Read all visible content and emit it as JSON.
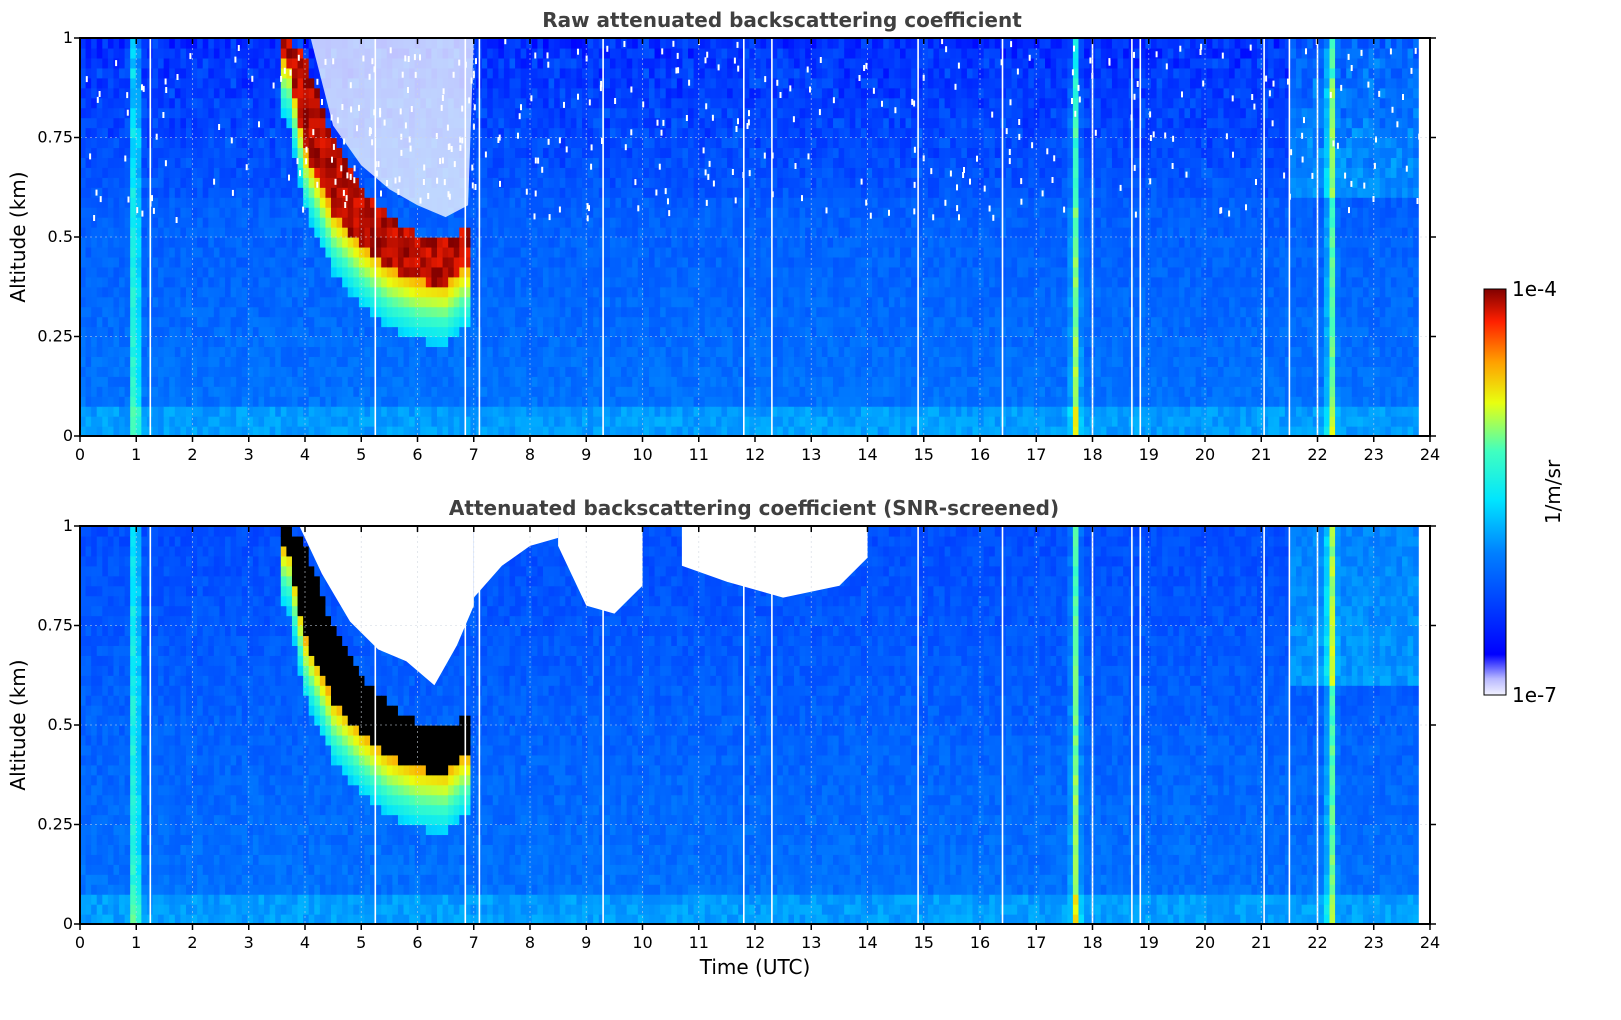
{
  "chart_data": [
    {
      "type": "heatmap",
      "title": "Raw attenuated backscattering coefficient",
      "xlabel": "",
      "ylabel": "Altitude (km)",
      "xlim": [
        0,
        24
      ],
      "ylim": [
        0,
        1
      ],
      "x_ticks": [
        "0",
        "1",
        "2",
        "3",
        "4",
        "5",
        "6",
        "7",
        "8",
        "9",
        "10",
        "11",
        "12",
        "13",
        "14",
        "15",
        "16",
        "17",
        "18",
        "19",
        "20",
        "21",
        "22",
        "23",
        "24"
      ],
      "y_ticks": [
        "0",
        "0.25",
        "0.5",
        "0.75",
        "1"
      ],
      "grid": true,
      "data_end_time": 23.8,
      "gap_times": [
        1.25,
        5.25,
        6.85,
        7.1,
        9.3,
        11.8,
        12.3,
        14.9,
        16.4,
        18.0,
        18.7,
        18.85,
        21.05,
        21.5,
        22.0
      ],
      "features": {
        "cloud_layer": [
          {
            "time": 3.7,
            "base": 0.95,
            "top": 1.0
          },
          {
            "time": 4.0,
            "base": 0.72,
            "top": 0.95
          },
          {
            "time": 4.5,
            "base": 0.56,
            "top": 0.75
          },
          {
            "time": 5.0,
            "base": 0.48,
            "top": 0.62
          },
          {
            "time": 5.5,
            "base": 0.42,
            "top": 0.55
          },
          {
            "time": 6.0,
            "base": 0.39,
            "top": 0.51
          },
          {
            "time": 6.5,
            "base": 0.38,
            "top": 0.49
          },
          {
            "time": 6.8,
            "base": 0.42,
            "top": 0.52
          }
        ],
        "vertical_streak_times": [
          0.98,
          17.7,
          22.25
        ],
        "noisy_upper_region_threshold_km": 0.55
      }
    },
    {
      "type": "heatmap",
      "title": "Attenuated backscattering coefficient (SNR-screened)",
      "xlabel": "Time (UTC)",
      "ylabel": "Altitude (km)",
      "xlim": [
        0,
        24
      ],
      "ylim": [
        0,
        1
      ],
      "x_ticks": [
        "0",
        "1",
        "2",
        "3",
        "4",
        "5",
        "6",
        "7",
        "8",
        "9",
        "10",
        "11",
        "12",
        "13",
        "14",
        "15",
        "16",
        "17",
        "18",
        "19",
        "20",
        "21",
        "22",
        "23",
        "24"
      ],
      "y_ticks": [
        "0",
        "0.25",
        "0.5",
        "0.75",
        "1"
      ],
      "grid": true,
      "data_end_time": 23.8,
      "gap_times": [
        1.25,
        5.25,
        6.85,
        7.1,
        9.3,
        11.8,
        12.3,
        14.9,
        16.4,
        18.0,
        18.7,
        18.85,
        21.05,
        21.5,
        22.0
      ],
      "screened_regions": [
        {
          "time_start": 3.9,
          "time_end": 7.0,
          "profile": [
            [
              3.9,
              1.0
            ],
            [
              4.3,
              0.88
            ],
            [
              4.8,
              0.76
            ],
            [
              5.3,
              0.69
            ],
            [
              5.8,
              0.66
            ],
            [
              6.3,
              0.6
            ],
            [
              6.7,
              0.7
            ],
            [
              7.0,
              0.8
            ]
          ]
        },
        {
          "time_start": 7.0,
          "time_end": 8.5,
          "profile": [
            [
              7.0,
              0.82
            ],
            [
              7.5,
              0.9
            ],
            [
              8.0,
              0.95
            ],
            [
              8.5,
              0.97
            ]
          ]
        },
        {
          "time_start": 8.5,
          "time_end": 10.0,
          "profile": [
            [
              8.5,
              0.95
            ],
            [
              9.0,
              0.8
            ],
            [
              9.5,
              0.78
            ],
            [
              10.0,
              0.85
            ]
          ]
        },
        {
          "time_start": 10.7,
          "time_end": 14.0,
          "profile": [
            [
              10.7,
              0.9
            ],
            [
              11.5,
              0.86
            ],
            [
              12.5,
              0.82
            ],
            [
              13.5,
              0.85
            ],
            [
              14.0,
              0.92
            ]
          ]
        }
      ]
    }
  ],
  "colorbar": {
    "label": "1/m/sr",
    "max_label": "1e-4",
    "min_label": "1e-7",
    "scale": "log",
    "colormap": "jet",
    "range": [
      1e-07,
      0.0001
    ]
  },
  "colors": {
    "saturated_cloud": "#000000",
    "background": "#1e78f0",
    "screened": "#ffffff"
  }
}
